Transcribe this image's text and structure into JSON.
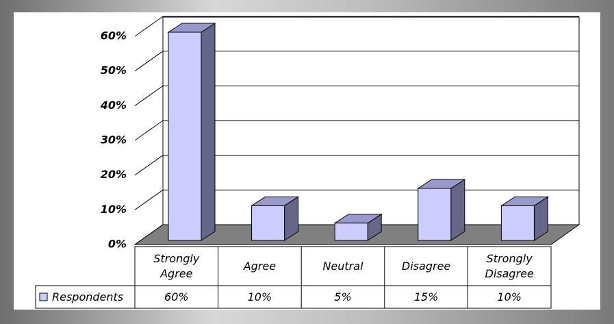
{
  "chart_data": {
    "type": "bar3d",
    "categories": [
      "Strongly Agree",
      "Agree",
      "Neutral",
      "Disagree",
      "Strongly Disagree"
    ],
    "series": [
      {
        "name": "Respondents",
        "color": "#ccccff",
        "values": [
          60,
          10,
          5,
          15,
          10
        ],
        "value_labels": [
          "60%",
          "10%",
          "5%",
          "15%",
          "10%"
        ]
      }
    ],
    "ylim": [
      0,
      60
    ],
    "yticks": [
      {
        "value": 0,
        "label": "0%"
      },
      {
        "value": 10,
        "label": "10%"
      },
      {
        "value": 20,
        "label": "20%"
      },
      {
        "value": 30,
        "label": "30%"
      },
      {
        "value": 40,
        "label": "40%"
      },
      {
        "value": 50,
        "label": "50%"
      },
      {
        "value": 60,
        "label": "60%"
      }
    ],
    "grid": true
  }
}
